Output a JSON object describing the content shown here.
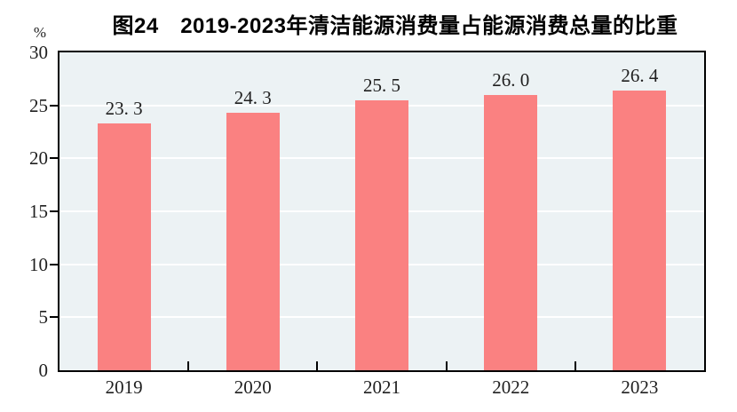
{
  "chart": {
    "title": "图24　2019-2023年清洁能源消费量占能源消费总量的比重",
    "unit_label": "%"
  },
  "chart_data": {
    "type": "bar",
    "title": "图24　2019-2023年清洁能源消费量占能源消费总量的比重",
    "unit": "%",
    "categories": [
      "2019",
      "2020",
      "2021",
      "2022",
      "2023"
    ],
    "values": [
      23.3,
      24.3,
      25.5,
      26.0,
      26.4
    ],
    "value_labels": [
      "23. 3",
      "24. 3",
      "25. 5",
      "26. 0",
      "26. 4"
    ],
    "ylim": [
      0,
      30
    ],
    "ytick_interval": 5,
    "yticks": [
      0,
      5,
      10,
      15,
      20,
      25,
      30
    ],
    "grid": true,
    "legend": "none",
    "colors": {
      "bar": "#FA8181",
      "plot_bg": "#ECF2F4",
      "gridline": "#FFFFFF",
      "axis": "#000000",
      "text": "#1F1F1F"
    }
  }
}
